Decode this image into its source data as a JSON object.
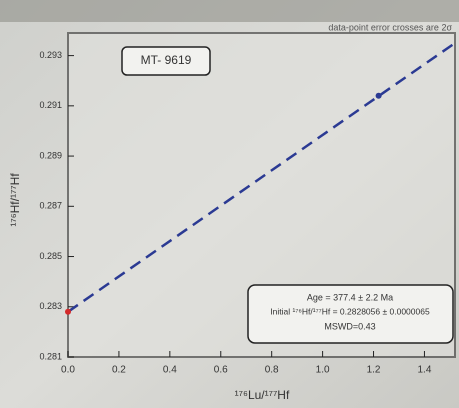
{
  "chart_data": {
    "type": "scatter",
    "title": "MT- 9619",
    "note": "data-point error crosses are 2σ",
    "x_label": "¹⁷⁶Lu/¹⁷⁷Hf",
    "y_label": "¹⁷⁶Hf/¹⁷⁷Hf",
    "result_lines": [
      "Age = 377.4 ± 2.2 Ma",
      "Initial ¹⁷⁶Hf/¹⁷⁷Hf = 0.2828056 ± 0.0000065",
      "MSWD=0.43"
    ],
    "xlim": [
      0,
      1.52
    ],
    "ylim": [
      0.281,
      0.2939
    ],
    "xticks": [
      {
        "value": 0,
        "label": "0.0"
      },
      0.2,
      0.4,
      0.6,
      0.8,
      {
        "value": 1,
        "label": "1.0"
      },
      1.2,
      1.4
    ],
    "yticks": [
      0.281,
      0.283,
      0.285,
      0.287,
      0.289,
      0.291,
      0.293
    ],
    "fit": {
      "x": [
        0,
        1.52
      ],
      "values": [
        0.2828,
        0.2935
      ],
      "color": "#2b3a93",
      "dashed": true
    },
    "points": {
      "x": [
        0,
        1.22
      ],
      "values": [
        0.2828,
        0.2914
      ],
      "colors": [
        "#d42a2a",
        "#2b3a93"
      ]
    }
  }
}
